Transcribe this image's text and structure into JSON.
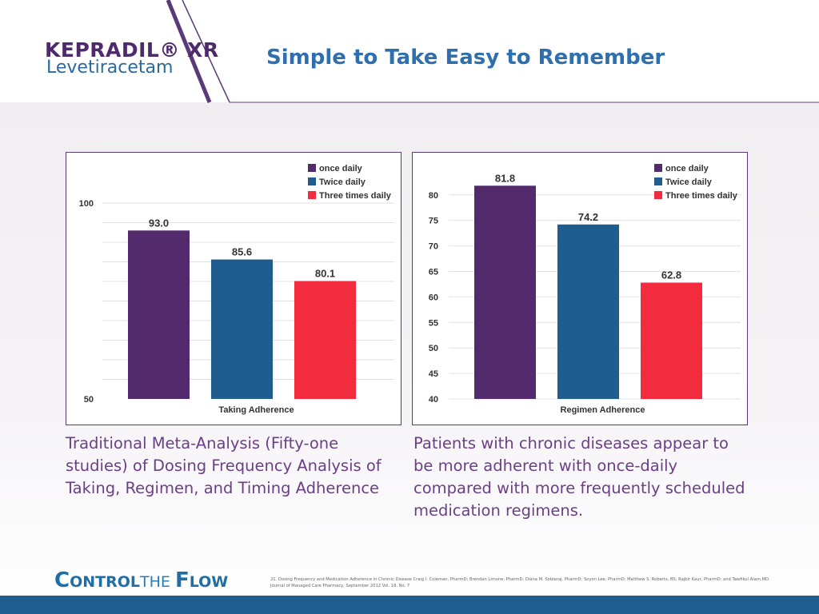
{
  "header": {
    "brand": "KEPRADIL® XR",
    "generic": "Levetiracetam",
    "title": "Simple to Take Easy to Remember"
  },
  "colors": {
    "once": "#532a6b",
    "twice": "#1f5d8e",
    "three": "#f32b3e",
    "title": "#2f6fae",
    "caption": "#6b3f86",
    "footer": "#1e5f8f"
  },
  "chart_data": [
    {
      "type": "bar",
      "categories": [
        "once daily",
        "Twice daily",
        "Three times daily"
      ],
      "values": [
        93.0,
        85.6,
        80.1
      ],
      "value_labels": [
        "93.0",
        "85.6",
        "80.1"
      ],
      "ylim": [
        50,
        100
      ],
      "yticks": [
        50,
        100
      ],
      "gridlines": [
        55,
        60,
        65,
        70,
        75,
        80,
        85,
        90,
        95
      ],
      "xlabel": "Taking Adherence",
      "legend": [
        "once daily",
        "Twice daily",
        "Three times daily"
      ],
      "legend_position": "top-right",
      "grid": true
    },
    {
      "type": "bar",
      "categories": [
        "once daily",
        "Twice daily",
        "Three times daily"
      ],
      "values": [
        81.8,
        74.2,
        62.8
      ],
      "value_labels": [
        "81.8",
        "74.2",
        "62.8"
      ],
      "ylim": [
        40,
        82
      ],
      "yticks": [
        40,
        45,
        50,
        55,
        60,
        65,
        70,
        75,
        80
      ],
      "gridlines": [
        40,
        45,
        50,
        55,
        60,
        65,
        70,
        75,
        80
      ],
      "xlabel": "Regimen Adherence",
      "legend": [
        "once daily",
        "Twice daily",
        "Three times daily"
      ],
      "legend_position": "top-right",
      "grid": true
    }
  ],
  "captions": {
    "left": "Traditional Meta-Analysis (Fifty-one studies) of Dosing Frequency Analysis of Taking,  Regimen, and Timing Adherence",
    "right": "Patients with chronic diseases appear to be more adherent with once-daily compared with more frequently scheduled medication regimens."
  },
  "footer": {
    "brand_c": "C",
    "brand_ontrol": "ONTROL",
    "brand_the": "THE ",
    "brand_f": "F",
    "brand_low": "LOW",
    "citation": "21. Dosing Frequency and Medication Adherence in Chronic Disease Craig I. Coleman, PharmD; Brendan Limone, PharmD; Diana M. Sobieraj, PharmD; Soyon Lee, PharmD; Matthew S. Roberts, BS; Rajbir Kaur, PharmD; and Tawfikul Alam,MD. Journal of Managed Care Pharmacy, September 2012 Vol. 18, No. 7"
  }
}
